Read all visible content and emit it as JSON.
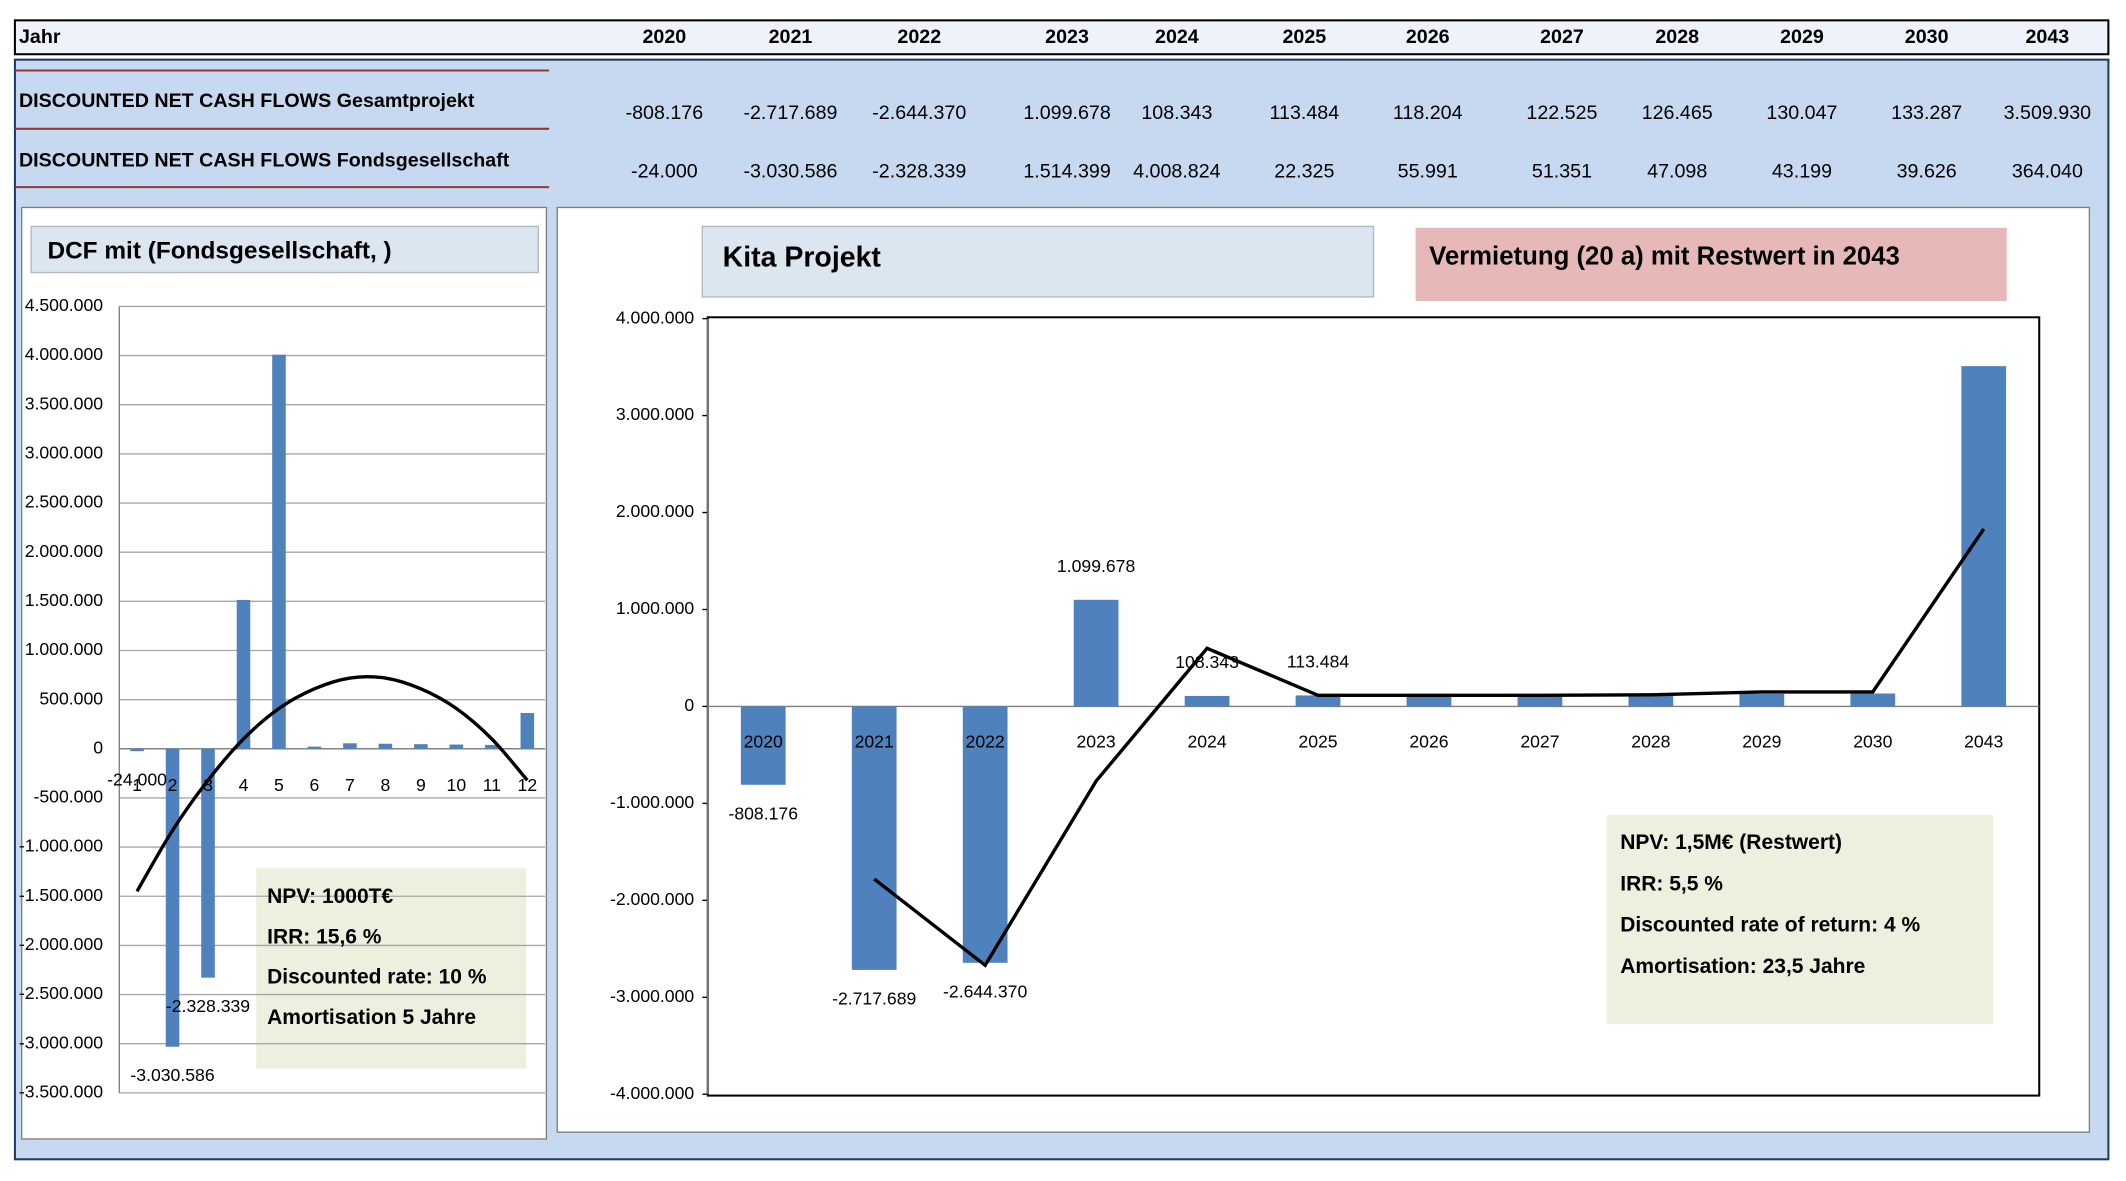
{
  "table": {
    "header": {
      "label": "Jahr",
      "years": [
        "2020",
        "2021",
        "2022",
        "2023",
        "2024",
        "2025",
        "2026",
        "2027",
        "2028",
        "2029",
        "2030",
        "2043"
      ]
    },
    "rows": [
      {
        "label": "DISCOUNTED NET CASH FLOWS Gesamtprojekt",
        "values": [
          "-808.176",
          "-2.717.689",
          "-2.644.370",
          "1.099.678",
          "108.343",
          "113.484",
          "118.204",
          "122.525",
          "126.465",
          "130.047",
          "133.287",
          "3.509.930"
        ]
      },
      {
        "label": "DISCOUNTED NET CASH FLOWS Fondsgesellschaft",
        "values": [
          "-24.000",
          "-3.030.586",
          "-2.328.339",
          "1.514.399",
          "4.008.824",
          "22.325",
          "55.991",
          "51.351",
          "47.098",
          "43.199",
          "39.626",
          "364.040"
        ]
      }
    ]
  },
  "chart_data": [
    {
      "type": "bar",
      "title": "DCF mit  (Fondsgesellschaft, )",
      "categories": [
        "1",
        "2",
        "3",
        "4",
        "5",
        "6",
        "7",
        "8",
        "9",
        "10",
        "11",
        "12"
      ],
      "series": [
        {
          "color": "#4f81bd",
          "values": [
            -24000,
            -3030586,
            -2328339,
            1514399,
            4008824,
            22325,
            55991,
            51351,
            47098,
            43199,
            39626,
            364040
          ],
          "value_labels": [
            "-24.000",
            "-3.030.586",
            "-2.328.339",
            null,
            null,
            null,
            null,
            null,
            null,
            null,
            null,
            null
          ]
        },
        {
          "type": "line",
          "smooth": true,
          "color": "#000000",
          "values": [
            -1450000,
            -830000,
            -320000,
            100000,
            410000,
            610000,
            720000,
            720000,
            610000,
            410000,
            100000,
            -320000
          ]
        }
      ],
      "ylim": [
        -3500000,
        4500000
      ],
      "yticks": [
        {
          "value": -3500000,
          "label": "-3.500.000"
        },
        {
          "value": -3000000,
          "label": "-3.000.000"
        },
        {
          "value": -2500000,
          "label": "-2.500.000"
        },
        {
          "value": -2000000,
          "label": "-2.000.000"
        },
        {
          "value": -1500000,
          "label": "-1.500.000"
        },
        {
          "value": -1000000,
          "label": "-1.000.000"
        },
        {
          "value": -500000,
          "label": "-500.000"
        },
        0,
        {
          "value": 500000,
          "label": "500.000"
        },
        {
          "value": 1000000,
          "label": "1.000.000"
        },
        {
          "value": 1500000,
          "label": "1.500.000"
        },
        {
          "value": 2000000,
          "label": "2.000.000"
        },
        {
          "value": 2500000,
          "label": "2.500.000"
        },
        {
          "value": 3000000,
          "label": "3.000.000"
        },
        {
          "value": 3500000,
          "label": "3.500.000"
        },
        {
          "value": 4000000,
          "label": "4.000.000"
        },
        {
          "value": 4500000,
          "label": "4.500.000"
        }
      ],
      "grid": true,
      "annotations": [
        "NPV:  1000T€",
        "IRR:   15,6 %",
        "Discounted rate: 10 %",
        "Amortisation 5 Jahre"
      ]
    },
    {
      "type": "bar",
      "title": "Kita Projekt",
      "subtitle": "Vermietung  (20 a) mit Restwert in 2043",
      "categories": [
        "2020",
        "2021",
        "2022",
        "2023",
        "2024",
        "2025",
        "2026",
        "2027",
        "2028",
        "2029",
        "2030",
        "2043"
      ],
      "series": [
        {
          "color": "#4f81bd",
          "values": [
            -808176,
            -2717689,
            -2644370,
            1099678,
            108343,
            113484,
            118204,
            122525,
            126465,
            130047,
            133287,
            3509930
          ],
          "value_labels": [
            "-808.176",
            "-2.717.689",
            "-2.644.370",
            "1.099.678",
            "108.343",
            "113.484",
            null,
            null,
            null,
            null,
            null,
            null
          ]
        },
        {
          "type": "line",
          "smooth": false,
          "color": "#000000",
          "values": [
            null,
            -1780000,
            -2670000,
            -770000,
            600000,
            115000,
            115000,
            115000,
            120000,
            150000,
            150000,
            1830000
          ]
        }
      ],
      "ylim": [
        -4000000,
        4000000
      ],
      "yticks": [
        {
          "value": -4000000,
          "label": "-4.000.000"
        },
        {
          "value": -3000000,
          "label": "-3.000.000"
        },
        {
          "value": -2000000,
          "label": "-2.000.000"
        },
        {
          "value": -1000000,
          "label": "-1.000.000"
        },
        0,
        {
          "value": 1000000,
          "label": "1.000.000"
        },
        {
          "value": 2000000,
          "label": "2.000.000"
        },
        {
          "value": 3000000,
          "label": "3.000.000"
        },
        {
          "value": 4000000,
          "label": "4.000.000"
        }
      ],
      "grid": false,
      "annotations": [
        "NPV:  1,5M€  (Restwert)",
        "IRR:   5,5 %",
        "Discounted rate of return:  4 %",
        "Amortisation:  23,5 Jahre"
      ]
    }
  ]
}
